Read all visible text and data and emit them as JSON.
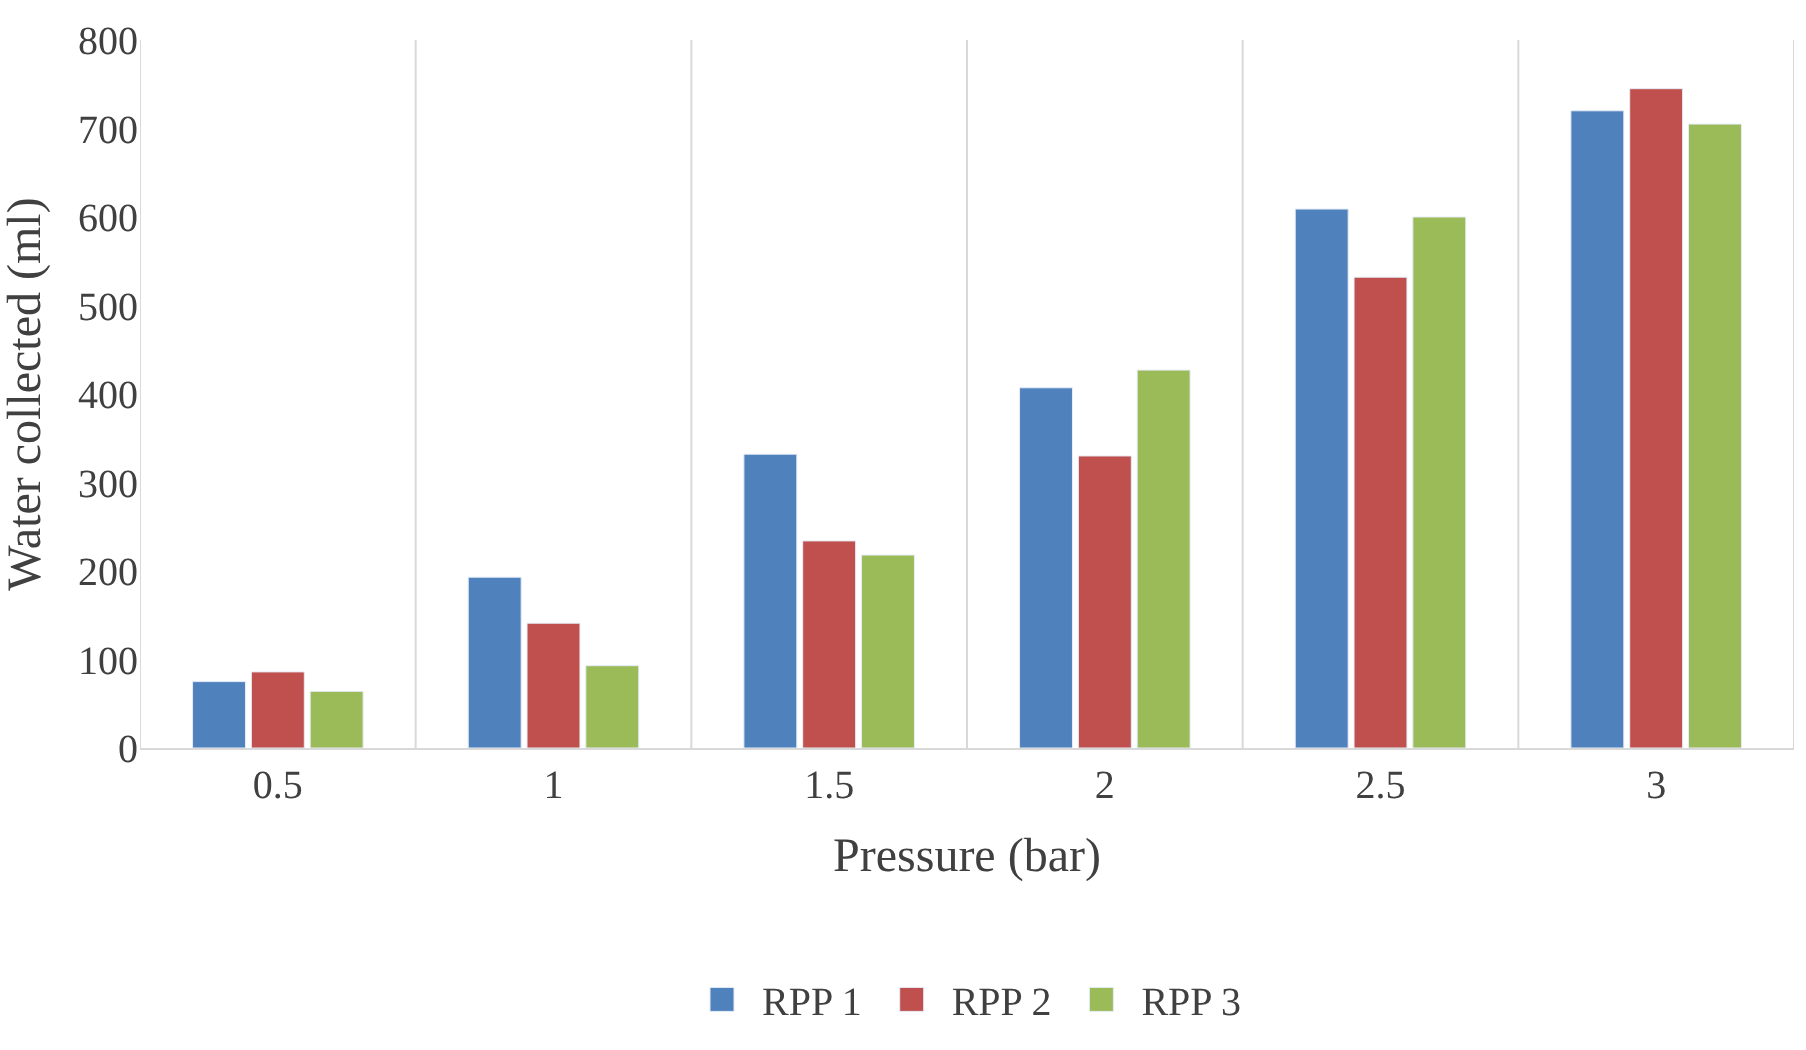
{
  "chart_data": {
    "type": "bar",
    "xlabel": "Pressure (bar)",
    "ylabel": "Water collected (ml)",
    "categories": [
      "0.5",
      "1",
      "1.5",
      "2",
      "2.5",
      "3"
    ],
    "series": [
      {
        "name": "RPP 1",
        "color": "#4f81bd",
        "values": [
          75,
          193,
          332,
          407,
          609,
          720
        ]
      },
      {
        "name": "RPP 2",
        "color": "#c0504d",
        "values": [
          86,
          141,
          234,
          330,
          532,
          745
        ]
      },
      {
        "name": "RPP 3",
        "color": "#9bbb59",
        "values": [
          64,
          93,
          218,
          427,
          600,
          705
        ]
      }
    ],
    "ylim": [
      0,
      800
    ],
    "yticks": [
      0,
      100,
      200,
      300,
      400,
      500,
      600,
      700,
      800
    ],
    "grid": "x",
    "legend": "bottom"
  }
}
